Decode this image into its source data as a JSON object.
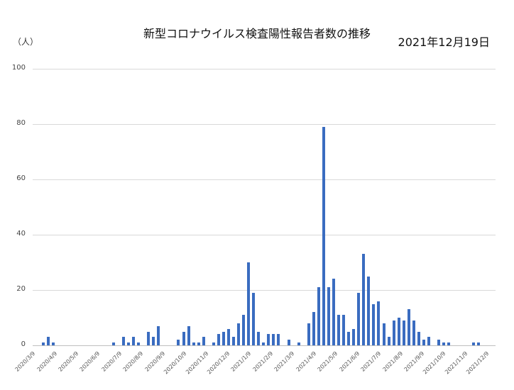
{
  "header": {
    "title": "新型コロナウイルス検査陽性報告者数の推移",
    "date": "2021年12月19日",
    "unit": "（人）"
  },
  "colors": {
    "bar": "#3a6cc0",
    "grid": "#d9d9d9"
  },
  "chart_data": {
    "type": "bar",
    "title": "新型コロナウイルス検査陽性報告者数の推移",
    "subtitle": "2021年12月19日",
    "xlabel": "",
    "ylabel": "（人）",
    "ylim": [
      0,
      100
    ],
    "yticks": [
      0,
      20,
      40,
      60,
      80,
      100
    ],
    "grid": true,
    "legend": "none",
    "x_tick_labels": [
      "2020/3/9",
      "2020/4/9",
      "2020/5/9",
      "2020/6/9",
      "2020/7/9",
      "2020/8/9",
      "2020/9/9",
      "2020/10/9",
      "2020/11/9",
      "2020/12/9",
      "2021/1/9",
      "2021/2/9",
      "2021/3/9",
      "2021/4/9",
      "2021/5/9",
      "2021/6/9",
      "2021/7/9",
      "2021/8/9",
      "2021/9/9",
      "2021/10/9",
      "2021/11/9",
      "2021/12/9"
    ],
    "interval": "weekly",
    "start": "2020/3/9",
    "values": [
      0,
      0,
      1,
      3,
      1,
      0,
      0,
      0,
      0,
      0,
      0,
      0,
      0,
      0,
      0,
      0,
      1,
      0,
      3,
      1,
      3,
      1,
      0,
      5,
      3,
      7,
      0,
      0,
      0,
      2,
      5,
      7,
      1,
      1,
      3,
      0,
      1,
      4,
      5,
      6,
      3,
      8,
      11,
      30,
      19,
      5,
      1,
      4,
      4,
      4,
      0,
      2,
      0,
      1,
      0,
      8,
      12,
      21,
      79,
      21,
      24,
      11,
      11,
      5,
      6,
      19,
      33,
      25,
      15,
      16,
      8,
      3,
      9,
      10,
      9,
      13,
      9,
      5,
      2,
      3,
      0,
      2,
      1,
      1,
      0,
      0,
      0,
      0,
      1,
      1,
      0
    ]
  }
}
